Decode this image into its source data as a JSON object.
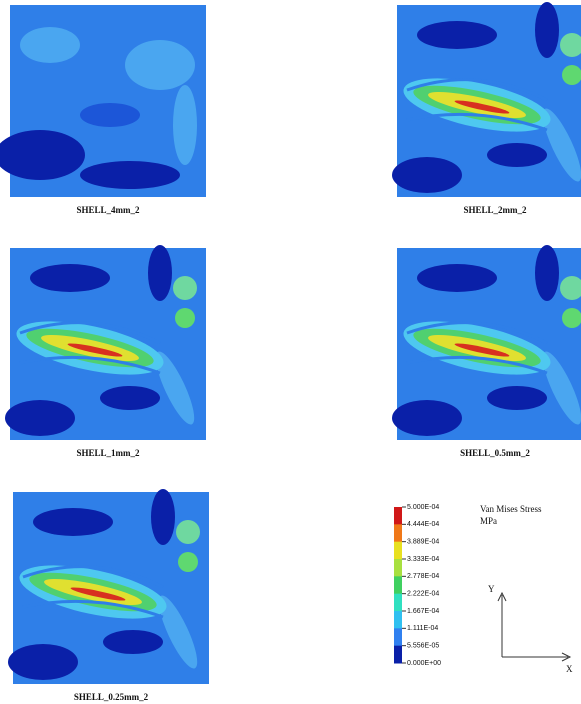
{
  "panels": [
    {
      "label": "SHELL_4mm_2"
    },
    {
      "label": "SHELL_2mm_2"
    },
    {
      "label": "SHELL_1mm_2"
    },
    {
      "label": "SHELL_0.5mm_2"
    },
    {
      "label": "SHELL_0.25mm_2"
    }
  ],
  "legend": {
    "title": "Van Mises Stress",
    "unit": "MPa",
    "ticks": [
      "5.000E-04",
      "4.444E-04",
      "3.889E-04",
      "3.333E-04",
      "2.778E-04",
      "2.222E-04",
      "1.667E-04",
      "1.111E-04",
      "5.556E-05",
      "0.000E+00"
    ]
  },
  "axes": {
    "y": "Y",
    "x": "X"
  }
}
